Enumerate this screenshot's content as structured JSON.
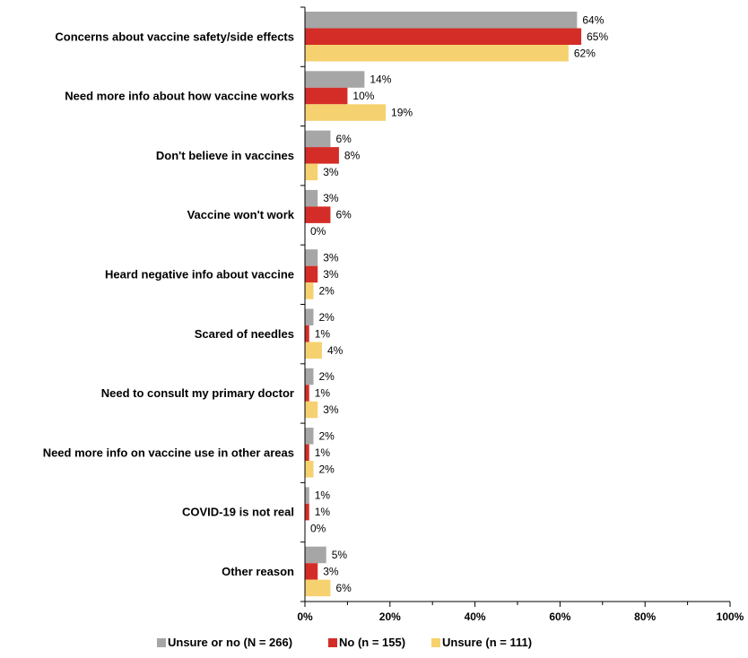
{
  "chart_data": {
    "type": "bar",
    "orientation": "horizontal",
    "categories": [
      "Concerns about vaccine safety/side effects",
      "Need more info about how vaccine works",
      "Don't believe in vaccines",
      "Vaccine won't work",
      "Heard negative info about vaccine",
      "Scared of needles",
      "Need to consult my primary doctor",
      "Need more info on vaccine use in other areas",
      "COVID-19 is not real",
      "Other reason"
    ],
    "series": [
      {
        "name": "Unsure or no (N = 266)",
        "color": "#a6a6a6",
        "values": [
          64,
          14,
          6,
          3,
          3,
          2,
          2,
          2,
          1,
          5
        ],
        "labels": [
          "64%",
          "14%",
          "6%",
          "3%",
          "3%",
          "2%",
          "2%",
          "2%",
          "1%",
          "5%"
        ]
      },
      {
        "name": "No (n = 155)",
        "color": "#d42d27",
        "values": [
          65,
          10,
          8,
          6,
          3,
          1,
          1,
          1,
          1,
          3
        ],
        "labels": [
          "65%",
          "10%",
          "8%",
          "6%",
          "3%",
          "1%",
          "1%",
          "1%",
          "1%",
          "3%"
        ]
      },
      {
        "name": "Unsure (n = 111)",
        "color": "#f6d16f",
        "values": [
          62,
          19,
          3,
          0,
          2,
          4,
          3,
          2,
          0,
          6
        ],
        "labels": [
          "62%",
          "19%",
          "3%",
          "0%",
          "2%",
          "4%",
          "3%",
          "2%",
          "0%",
          "6%"
        ]
      }
    ],
    "xlim": [
      0,
      100
    ],
    "xticks": [
      "0%",
      "20%",
      "40%",
      "60%",
      "80%",
      "100%"
    ],
    "xlabel": "",
    "ylabel": "",
    "title": "",
    "grid": false,
    "legend_position": "bottom"
  }
}
